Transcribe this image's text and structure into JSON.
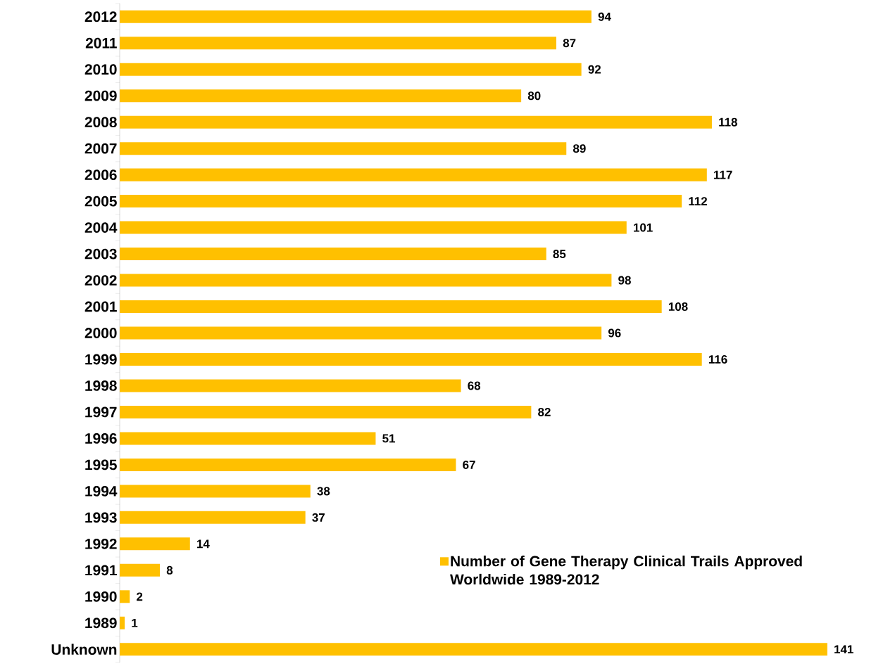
{
  "chart_data": {
    "type": "bar",
    "orientation": "horizontal",
    "categories": [
      "2012",
      "2011",
      "2010",
      "2009",
      "2008",
      "2007",
      "2006",
      "2005",
      "2004",
      "2003",
      "2002",
      "2001",
      "2000",
      "1999",
      "1998",
      "1997",
      "1996",
      "1995",
      "1994",
      "1993",
      "1992",
      "1991",
      "1990",
      "1989",
      "Unknown"
    ],
    "series": [
      {
        "name": "Number of Gene Therapy Clinical Trails Approved Worldwide 1989-2012",
        "color": "#ffc000",
        "values": [
          94,
          87,
          92,
          80,
          118,
          89,
          117,
          112,
          101,
          85,
          98,
          108,
          96,
          116,
          68,
          82,
          51,
          67,
          38,
          37,
          14,
          8,
          2,
          1,
          141
        ]
      }
    ],
    "data_labels": true,
    "legend": "bottom right"
  }
}
